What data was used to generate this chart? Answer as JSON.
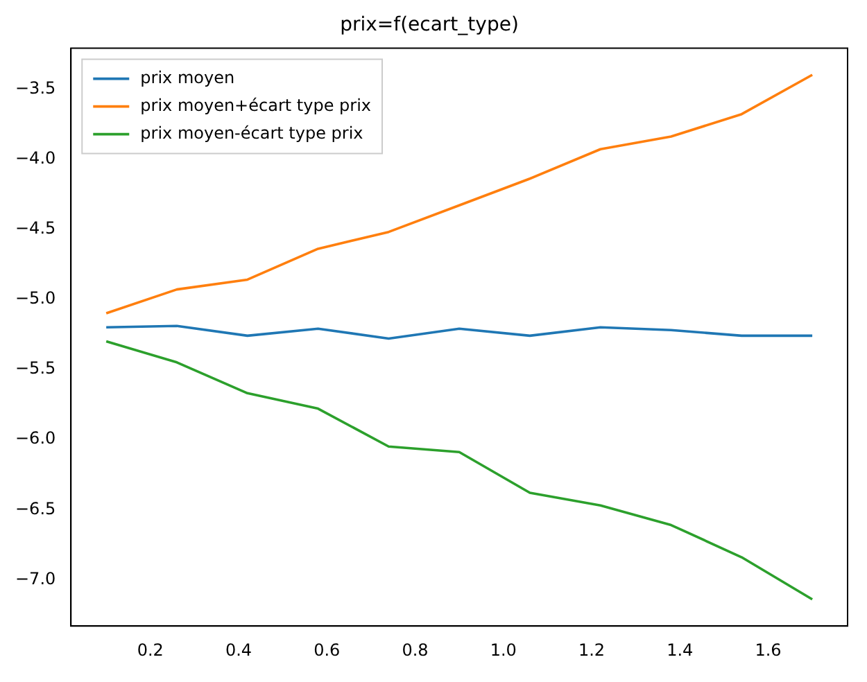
{
  "chart_data": {
    "type": "line",
    "title": "prix=f(ecart_type)",
    "x": [
      0.1,
      0.26,
      0.42,
      0.58,
      0.74,
      0.9,
      1.06,
      1.22,
      1.38,
      1.54,
      1.7
    ],
    "series": [
      {
        "name": "prix moyen",
        "color": "#1f77b4",
        "values": [
          -5.2,
          -5.19,
          -5.26,
          -5.21,
          -5.28,
          -5.21,
          -5.26,
          -5.2,
          -5.22,
          -5.26,
          -5.26
        ]
      },
      {
        "name": "prix moyen+écart type prix",
        "color": "#ff7f0e",
        "values": [
          -5.1,
          -4.93,
          -4.86,
          -4.64,
          -4.52,
          -4.33,
          -4.14,
          -3.93,
          -3.84,
          -3.68,
          -3.4
        ]
      },
      {
        "name": "prix moyen-écart type prix",
        "color": "#2ca02c",
        "values": [
          -5.3,
          -5.45,
          -5.67,
          -5.78,
          -6.05,
          -6.09,
          -6.38,
          -6.47,
          -6.61,
          -6.84,
          -7.14
        ]
      }
    ],
    "xlim": [
      0.02,
      1.78
    ],
    "xticks": [
      0.2,
      0.4,
      0.6,
      0.8,
      {
        "value": 1,
        "label": "1.0"
      },
      1.2,
      1.4,
      1.6
    ],
    "ylim": [
      -7.33,
      -3.21
    ],
    "yticks": [
      {
        "value": -7,
        "label": "−7.0"
      },
      {
        "value": -6.5,
        "label": "−6.5"
      },
      {
        "value": -6,
        "label": "−6.0"
      },
      {
        "value": -5.5,
        "label": "−5.5"
      },
      {
        "value": -5,
        "label": "−5.0"
      },
      {
        "value": -4.5,
        "label": "−4.5"
      },
      {
        "value": -4,
        "label": "−4.0"
      },
      {
        "value": -3.5,
        "label": "−3.5"
      }
    ],
    "grid": false,
    "legend": "top left",
    "marker": "none",
    "line_style": "solid"
  }
}
